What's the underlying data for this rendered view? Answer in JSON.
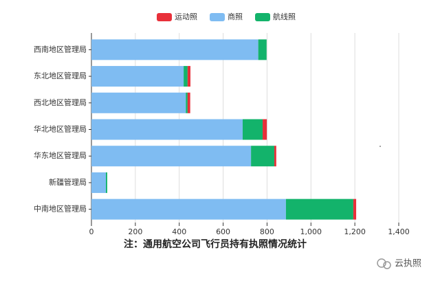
{
  "chart_data": {
    "type": "stacked_barh",
    "categories": [
      "西南地区管理局",
      "东北地区管理局",
      "西北地区管理局",
      "华北地区管理局",
      "华东地区管理局",
      "新疆管理局",
      "中南地区管理局"
    ],
    "series": [
      {
        "name": "运动照",
        "color": "#e8303a",
        "values": [
          0,
          13,
          12,
          19,
          9,
          0,
          13
        ]
      },
      {
        "name": "商照",
        "color": "#7fbcf2",
        "values": [
          760,
          420,
          430,
          689,
          727,
          66,
          886
        ]
      },
      {
        "name": "航线照",
        "color": "#13b36b",
        "values": [
          38,
          18,
          8,
          91,
          106,
          6,
          307
        ]
      }
    ],
    "xlim": [
      0,
      1400
    ],
    "xticks": [
      0,
      200,
      400,
      600,
      800,
      {
        "value": 1000,
        "label": "1,000"
      },
      {
        "value": 1200,
        "label": "1,200"
      },
      {
        "value": 1400,
        "label": "1,400"
      }
    ],
    "grid": true,
    "legend": "top",
    "annotation": "注：通用航空公司飞行员持有执照情况统计",
    "watermark": "云执照"
  }
}
